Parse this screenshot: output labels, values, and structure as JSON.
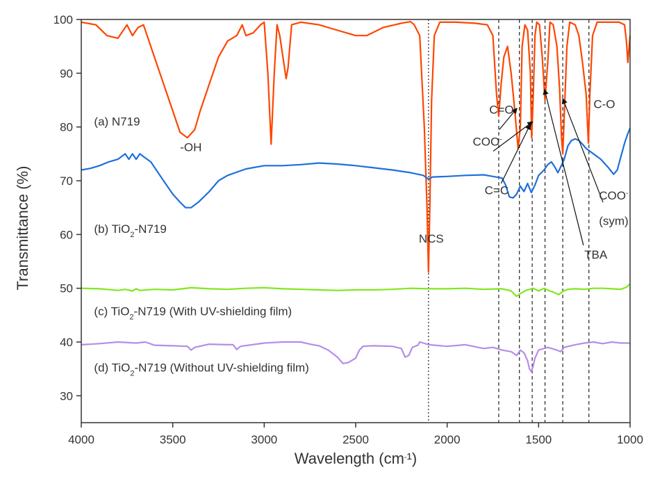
{
  "chart_data": {
    "type": "line",
    "title": "",
    "xlabel": "Wavelength (cm⁻¹)",
    "ylabel": "Transmittance (%)",
    "xlim": [
      4000,
      1000
    ],
    "ylim": [
      25,
      100
    ],
    "x_reversed": true,
    "xticks": [
      "4000",
      "3500",
      "3000",
      "2500",
      "2000",
      "1500",
      "1000"
    ],
    "yticks": [
      "30",
      "40",
      "50",
      "60",
      "70",
      "80",
      "90",
      "100"
    ],
    "grid": false,
    "legend": "none",
    "series": [
      {
        "name": "(a) N719",
        "color": "#ff4500",
        "points": [
          [
            4000,
            99.5
          ],
          [
            3920,
            99
          ],
          [
            3860,
            97
          ],
          [
            3800,
            96.5
          ],
          [
            3750,
            99
          ],
          [
            3720,
            97
          ],
          [
            3690,
            98.5
          ],
          [
            3660,
            99
          ],
          [
            3640,
            97
          ],
          [
            3600,
            93
          ],
          [
            3550,
            88
          ],
          [
            3500,
            83
          ],
          [
            3460,
            79
          ],
          [
            3420,
            78
          ],
          [
            3380,
            79.5
          ],
          [
            3350,
            83
          ],
          [
            3300,
            88
          ],
          [
            3250,
            93
          ],
          [
            3200,
            96
          ],
          [
            3150,
            97
          ],
          [
            3120,
            99
          ],
          [
            3100,
            97
          ],
          [
            3060,
            97.5
          ],
          [
            3020,
            99
          ],
          [
            3000,
            99.5
          ],
          [
            2980,
            90
          ],
          [
            2962,
            76.8
          ],
          [
            2945,
            90
          ],
          [
            2930,
            99
          ],
          [
            2915,
            97
          ],
          [
            2880,
            89
          ],
          [
            2870,
            91
          ],
          [
            2850,
            99
          ],
          [
            2800,
            99.5
          ],
          [
            2700,
            99
          ],
          [
            2600,
            98
          ],
          [
            2500,
            97
          ],
          [
            2440,
            97
          ],
          [
            2350,
            98.5
          ],
          [
            2250,
            99.3
          ],
          [
            2200,
            99.6
          ],
          [
            2180,
            99
          ],
          [
            2150,
            97
          ],
          [
            2125,
            80
          ],
          [
            2110,
            65
          ],
          [
            2102,
            53
          ],
          [
            2095,
            65
          ],
          [
            2085,
            85
          ],
          [
            2070,
            97
          ],
          [
            2040,
            99.5
          ],
          [
            1950,
            99.5
          ],
          [
            1850,
            99.3
          ],
          [
            1780,
            99
          ],
          [
            1750,
            97
          ],
          [
            1730,
            86
          ],
          [
            1718,
            82
          ],
          [
            1705,
            88
          ],
          [
            1690,
            93
          ],
          [
            1670,
            95
          ],
          [
            1650,
            90
          ],
          [
            1630,
            83
          ],
          [
            1612,
            76
          ],
          [
            1600,
            80
          ],
          [
            1590,
            95
          ],
          [
            1575,
            99
          ],
          [
            1560,
            98
          ],
          [
            1545,
            90
          ],
          [
            1538,
            78
          ],
          [
            1530,
            85
          ],
          [
            1520,
            97
          ],
          [
            1510,
            99.5
          ],
          [
            1495,
            99
          ],
          [
            1480,
            93
          ],
          [
            1465,
            85
          ],
          [
            1450,
            92
          ],
          [
            1438,
            99.5
          ],
          [
            1420,
            99
          ],
          [
            1400,
            95
          ],
          [
            1385,
            87
          ],
          [
            1375,
            78
          ],
          [
            1368,
            75
          ],
          [
            1360,
            82
          ],
          [
            1345,
            95
          ],
          [
            1330,
            99.5
          ],
          [
            1300,
            99
          ],
          [
            1280,
            97
          ],
          [
            1260,
            92
          ],
          [
            1240,
            86
          ],
          [
            1228,
            77
          ],
          [
            1220,
            86
          ],
          [
            1205,
            97
          ],
          [
            1180,
            99.5
          ],
          [
            1120,
            99.5
          ],
          [
            1060,
            99.5
          ],
          [
            1030,
            99
          ],
          [
            1020,
            96
          ],
          [
            1012,
            92
          ],
          [
            1000,
            97
          ]
        ]
      },
      {
        "name": "(b) TiO₂-N719",
        "color": "#1f6fdc",
        "points": [
          [
            4000,
            72
          ],
          [
            3950,
            72.3
          ],
          [
            3900,
            72.8
          ],
          [
            3850,
            73.5
          ],
          [
            3800,
            74
          ],
          [
            3760,
            75
          ],
          [
            3740,
            74
          ],
          [
            3720,
            75
          ],
          [
            3700,
            74
          ],
          [
            3680,
            75
          ],
          [
            3660,
            74.5
          ],
          [
            3620,
            73.5
          ],
          [
            3580,
            71.5
          ],
          [
            3540,
            69.5
          ],
          [
            3500,
            67.5
          ],
          [
            3460,
            66
          ],
          [
            3430,
            65
          ],
          [
            3400,
            65
          ],
          [
            3360,
            66
          ],
          [
            3300,
            68
          ],
          [
            3250,
            70
          ],
          [
            3200,
            71
          ],
          [
            3100,
            72.2
          ],
          [
            3000,
            72.8
          ],
          [
            2900,
            72.8
          ],
          [
            2800,
            73
          ],
          [
            2700,
            73.3
          ],
          [
            2600,
            73.1
          ],
          [
            2500,
            72.8
          ],
          [
            2400,
            72.4
          ],
          [
            2300,
            72
          ],
          [
            2200,
            71.5
          ],
          [
            2130,
            71
          ],
          [
            2102,
            70.3
          ],
          [
            2080,
            70.7
          ],
          [
            2000,
            70.8
          ],
          [
            1900,
            71
          ],
          [
            1800,
            71.1
          ],
          [
            1750,
            70.8
          ],
          [
            1700,
            70.5
          ],
          [
            1680,
            69.2
          ],
          [
            1660,
            67
          ],
          [
            1640,
            66.8
          ],
          [
            1620,
            67.5
          ],
          [
            1600,
            69
          ],
          [
            1580,
            68
          ],
          [
            1560,
            69.5
          ],
          [
            1540,
            67.8
          ],
          [
            1520,
            69.2
          ],
          [
            1500,
            71
          ],
          [
            1470,
            72
          ],
          [
            1450,
            73
          ],
          [
            1430,
            73.5
          ],
          [
            1410,
            72.5
          ],
          [
            1395,
            71.5
          ],
          [
            1380,
            72.5
          ],
          [
            1360,
            74
          ],
          [
            1340,
            76.5
          ],
          [
            1320,
            77.5
          ],
          [
            1300,
            77.8
          ],
          [
            1280,
            77.5
          ],
          [
            1260,
            76.8
          ],
          [
            1240,
            76
          ],
          [
            1220,
            75.5
          ],
          [
            1200,
            75
          ],
          [
            1160,
            74
          ],
          [
            1120,
            72.5
          ],
          [
            1090,
            71.2
          ],
          [
            1070,
            72
          ],
          [
            1050,
            74.5
          ],
          [
            1030,
            77
          ],
          [
            1015,
            78.5
          ],
          [
            1000,
            79.8
          ]
        ]
      },
      {
        "name": "(c) TiO₂-N719 (With UV-shielding film)",
        "color": "#7fe81c",
        "points": [
          [
            4000,
            50
          ],
          [
            3900,
            49.9
          ],
          [
            3800,
            49.6
          ],
          [
            3760,
            49.8
          ],
          [
            3720,
            49.5
          ],
          [
            3700,
            49.9
          ],
          [
            3680,
            49.6
          ],
          [
            3600,
            49.8
          ],
          [
            3500,
            49.7
          ],
          [
            3400,
            50.1
          ],
          [
            3300,
            49.9
          ],
          [
            3200,
            49.8
          ],
          [
            3100,
            50
          ],
          [
            3000,
            50.1
          ],
          [
            2900,
            49.9
          ],
          [
            2800,
            49.8
          ],
          [
            2700,
            49.7
          ],
          [
            2600,
            49.6
          ],
          [
            2500,
            49.7
          ],
          [
            2400,
            49.7
          ],
          [
            2300,
            49.8
          ],
          [
            2200,
            50
          ],
          [
            2100,
            49.9
          ],
          [
            2000,
            49.9
          ],
          [
            1900,
            50
          ],
          [
            1800,
            49.8
          ],
          [
            1700,
            49.9
          ],
          [
            1650,
            49.5
          ],
          [
            1620,
            48.5
          ],
          [
            1600,
            49
          ],
          [
            1570,
            49.6
          ],
          [
            1530,
            50
          ],
          [
            1500,
            49.5
          ],
          [
            1470,
            50
          ],
          [
            1440,
            49.5
          ],
          [
            1420,
            49.3
          ],
          [
            1390,
            48.8
          ],
          [
            1370,
            49.4
          ],
          [
            1340,
            49.8
          ],
          [
            1300,
            49.9
          ],
          [
            1250,
            49.8
          ],
          [
            1200,
            50
          ],
          [
            1150,
            50
          ],
          [
            1100,
            49.9
          ],
          [
            1050,
            49.8
          ],
          [
            1020,
            50.2
          ],
          [
            1000,
            50.8
          ]
        ]
      },
      {
        "name": "(d) TiO₂-N719 (Without UV-shielding film)",
        "color": "#b58de8",
        "points": [
          [
            4000,
            39.5
          ],
          [
            3900,
            39.7
          ],
          [
            3800,
            40
          ],
          [
            3700,
            39.8
          ],
          [
            3650,
            40
          ],
          [
            3600,
            39.4
          ],
          [
            3500,
            39.3
          ],
          [
            3420,
            39.2
          ],
          [
            3400,
            38.5
          ],
          [
            3380,
            39
          ],
          [
            3300,
            39.6
          ],
          [
            3200,
            39.5
          ],
          [
            3170,
            39.5
          ],
          [
            3150,
            38.6
          ],
          [
            3130,
            39.2
          ],
          [
            3000,
            39.8
          ],
          [
            2900,
            40
          ],
          [
            2800,
            40
          ],
          [
            2750,
            39.6
          ],
          [
            2700,
            39.3
          ],
          [
            2650,
            38.5
          ],
          [
            2600,
            37.2
          ],
          [
            2570,
            36
          ],
          [
            2540,
            36.2
          ],
          [
            2500,
            37
          ],
          [
            2480,
            38.5
          ],
          [
            2460,
            39.2
          ],
          [
            2400,
            39.3
          ],
          [
            2300,
            39.2
          ],
          [
            2250,
            38.8
          ],
          [
            2230,
            37.2
          ],
          [
            2210,
            37.5
          ],
          [
            2190,
            39
          ],
          [
            2160,
            39.4
          ],
          [
            2150,
            40
          ],
          [
            2130,
            39.8
          ],
          [
            2100,
            39.5
          ],
          [
            2000,
            39.2
          ],
          [
            1900,
            39.5
          ],
          [
            1800,
            38.8
          ],
          [
            1750,
            39
          ],
          [
            1700,
            38.5
          ],
          [
            1650,
            38.2
          ],
          [
            1620,
            37.5
          ],
          [
            1600,
            38.5
          ],
          [
            1580,
            38
          ],
          [
            1560,
            36.5
          ],
          [
            1550,
            35
          ],
          [
            1540,
            34.5
          ],
          [
            1530,
            35.5
          ],
          [
            1520,
            37
          ],
          [
            1500,
            38.5
          ],
          [
            1450,
            39
          ],
          [
            1400,
            38.5
          ],
          [
            1380,
            38.2
          ],
          [
            1360,
            39
          ],
          [
            1300,
            39.5
          ],
          [
            1250,
            39.8
          ],
          [
            1200,
            40
          ],
          [
            1150,
            39.7
          ],
          [
            1100,
            40
          ],
          [
            1050,
            39.8
          ],
          [
            1000,
            39.8
          ]
        ]
      }
    ],
    "series_labels": [
      {
        "text": "(a) N719",
        "x": 3930,
        "y": 80.3
      },
      {
        "text": "(b) TiO₂-N719",
        "x": 3930,
        "y": 60.3
      },
      {
        "text": "(c) TiO₂-N719 (With UV-shielding film)",
        "x": 3930,
        "y": 45
      },
      {
        "text": "(d) TiO₂-N719 (Without UV-shielding film)",
        "x": 3930,
        "y": 34.5
      }
    ],
    "reference_lines": [
      {
        "x": 2102,
        "style": "dotted"
      },
      {
        "x": 1718,
        "style": "dashed"
      },
      {
        "x": 1605,
        "style": "dashed"
      },
      {
        "x": 1535,
        "style": "dashed"
      },
      {
        "x": 1465,
        "style": "dashed"
      },
      {
        "x": 1368,
        "style": "dashed"
      },
      {
        "x": 1225,
        "style": "dashed"
      }
    ],
    "annotations": [
      {
        "text": "-OH",
        "x": 3460,
        "y": 75.5
      },
      {
        "text": "NCS",
        "x": 2155,
        "y": 58.5
      },
      {
        "text": "C=O",
        "x": 1770,
        "y": 82.5
      },
      {
        "text": "COO⁻",
        "x": 1860,
        "y": 76.5
      },
      {
        "text": "C=C",
        "x": 1795,
        "y": 67.5
      },
      {
        "text": "C-O",
        "x": 1200,
        "y": 83.5
      },
      {
        "text": "COO⁻",
        "x": 1170,
        "y": 66.5
      },
      {
        "text": "(sym)",
        "x": 1170,
        "y": 61.8
      },
      {
        "text": "TBA",
        "x": 1250,
        "y": 55.5
      }
    ],
    "arrows": [
      {
        "from": [
          1715,
          79.5
        ],
        "to": [
          1618,
          83.5
        ]
      },
      {
        "from": [
          1748,
          75.5
        ],
        "to": [
          1532,
          81
        ]
      },
      {
        "from": [
          1705,
          69.5
        ],
        "to": [
          1545,
          80.5
        ]
      },
      {
        "from": [
          1255,
          58
        ],
        "to": [
          1468,
          87
        ]
      },
      {
        "from": [
          1148,
          66
        ],
        "to": [
          1368,
          85.3
        ]
      }
    ]
  }
}
